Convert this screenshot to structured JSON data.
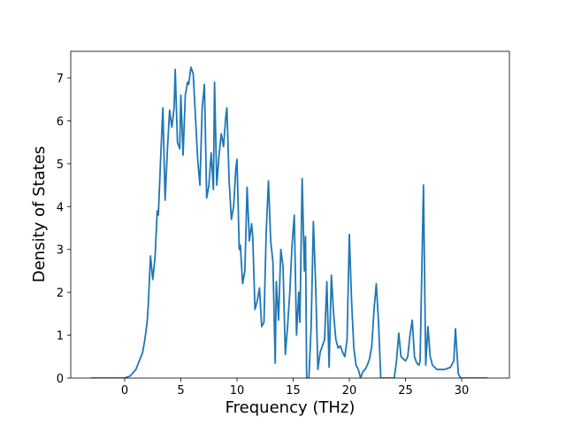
{
  "chart_data": {
    "type": "line",
    "xlabel": "Frequency (THz)",
    "ylabel": "Density of States",
    "x": [
      -3.0,
      -1,
      0,
      0.5,
      1,
      1.3,
      1.6,
      1.8,
      2.0,
      2.1,
      2.3,
      2.5,
      2.7,
      2.9,
      3.0,
      3.2,
      3.4,
      3.6,
      3.8,
      4.0,
      4.2,
      4.4,
      4.5,
      4.7,
      4.9,
      5.0,
      5.2,
      5.4,
      5.6,
      5.7,
      5.9,
      6.1,
      6.3,
      6.5,
      6.7,
      6.9,
      7.1,
      7.3,
      7.5,
      7.7,
      7.9,
      8.0,
      8.2,
      8.4,
      8.6,
      8.8,
      9.0,
      9.1,
      9.3,
      9.5,
      9.7,
      9.9,
      10.0,
      10.2,
      10.3,
      10.5,
      10.7,
      10.9,
      11.1,
      11.3,
      11.4,
      11.6,
      11.8,
      12.0,
      12.2,
      12.4,
      12.6,
      12.8,
      13.0,
      13.2,
      13.4,
      13.5,
      13.7,
      13.9,
      14.1,
      14.3,
      14.5,
      14.7,
      14.9,
      15.1,
      15.3,
      15.5,
      15.6,
      15.8,
      16.0,
      16.1,
      16.2,
      16.4,
      16.6,
      16.8,
      17.0,
      17.2,
      17.4,
      17.6,
      17.8,
      18.0,
      18.2,
      18.4,
      18.6,
      18.8,
      19.0,
      19.2,
      19.4,
      19.6,
      19.8,
      20.0,
      20.2,
      20.4,
      20.6,
      20.8,
      21.0,
      21.2,
      21.4,
      21.6,
      21.8,
      22.0,
      22.2,
      22.4,
      22.6,
      22.8,
      23.5,
      24.0,
      24.2,
      24.4,
      24.6,
      24.8,
      25.0,
      25.2,
      25.4,
      25.6,
      25.8,
      26.0,
      26.2,
      26.3,
      26.6,
      26.8,
      27.0,
      27.2,
      27.4,
      27.6,
      27.8,
      28.0,
      28.5,
      29.0,
      29.3,
      29.45,
      29.7,
      29.9,
      30.5,
      32.3
    ],
    "values": [
      0,
      0,
      0,
      0.05,
      0.2,
      0.4,
      0.6,
      0.9,
      1.3,
      1.7,
      2.85,
      2.3,
      2.8,
      3.9,
      3.8,
      5.1,
      6.3,
      4.15,
      5.3,
      6.25,
      5.85,
      6.3,
      7.2,
      5.5,
      5.35,
      6.6,
      5.2,
      6.6,
      6.9,
      6.85,
      7.25,
      7.1,
      6.1,
      5.1,
      4.5,
      6.3,
      6.85,
      4.2,
      4.5,
      5.25,
      4.4,
      6.9,
      4.5,
      5.2,
      5.7,
      5.4,
      6.1,
      6.3,
      4.6,
      3.7,
      4.0,
      4.9,
      5.1,
      3.0,
      3.1,
      2.2,
      2.5,
      4.45,
      3.2,
      3.6,
      3.3,
      1.6,
      1.8,
      2.1,
      1.2,
      1.3,
      3.4,
      4.6,
      3.2,
      2.7,
      0.35,
      2.25,
      1.35,
      3.0,
      2.6,
      0.55,
      1.2,
      2.0,
      3.1,
      3.8,
      1.0,
      2.0,
      1.3,
      4.65,
      2.5,
      3.3,
      0,
      0,
      1.2,
      3.65,
      2.2,
      0.2,
      0.6,
      0.75,
      0.9,
      2.25,
      0.25,
      2.4,
      1.5,
      0.9,
      0.7,
      0.75,
      0.6,
      0.5,
      0.9,
      3.35,
      1.8,
      0.7,
      0.3,
      0.2,
      0,
      0.15,
      0.2,
      0.3,
      0.45,
      0.75,
      1.6,
      2.2,
      1.3,
      0,
      0,
      0,
      0.4,
      1.05,
      0.5,
      0.45,
      0.4,
      0.5,
      1.0,
      1.35,
      0.5,
      0.35,
      0.3,
      0.4,
      4.5,
      0.3,
      1.2,
      0.5,
      0.3,
      0.25,
      0.2,
      0.2,
      0.2,
      0.25,
      0.4,
      1.15,
      0.1,
      0,
      0,
      0
    ],
    "color": "#1f77b4",
    "xlim": [
      -4.8,
      34.25
    ],
    "ylim": [
      0,
      7.62
    ],
    "xticks": [
      0,
      5,
      10,
      15,
      20,
      25,
      30
    ],
    "yticks": [
      0,
      1,
      2,
      3,
      4,
      5,
      6,
      7
    ]
  }
}
